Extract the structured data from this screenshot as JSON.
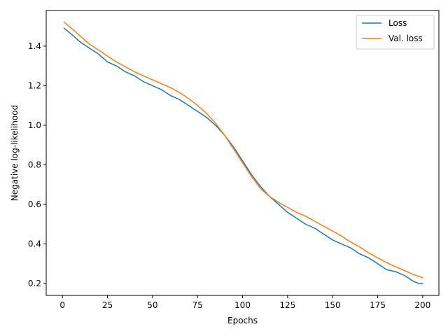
{
  "chart_data": {
    "type": "line",
    "title": "",
    "xlabel": "Epochs",
    "ylabel": "Negative log-likelihood",
    "xlim": [
      -9,
      209
    ],
    "ylim": [
      0.14,
      1.58
    ],
    "xticks": [
      0,
      25,
      50,
      75,
      100,
      125,
      150,
      175,
      200
    ],
    "yticks": [
      0.2,
      0.4,
      0.6,
      0.8,
      1.0,
      1.2,
      1.4
    ],
    "ytick_labels": [
      "0.2",
      "0.4",
      "0.6",
      "0.8",
      "1.0",
      "1.2",
      "1.4"
    ],
    "grid": false,
    "legend": "top-right",
    "series": [
      {
        "name": "Loss",
        "color": "#1f77b4",
        "x": [
          1,
          5,
          10,
          15,
          20,
          25,
          30,
          35,
          40,
          45,
          50,
          55,
          60,
          65,
          70,
          75,
          80,
          85,
          90,
          95,
          100,
          105,
          110,
          115,
          120,
          125,
          130,
          135,
          140,
          145,
          150,
          155,
          160,
          165,
          170,
          175,
          180,
          185,
          190,
          195,
          198,
          200
        ],
        "y": [
          1.49,
          1.46,
          1.42,
          1.39,
          1.36,
          1.32,
          1.3,
          1.27,
          1.25,
          1.22,
          1.2,
          1.18,
          1.15,
          1.13,
          1.1,
          1.07,
          1.04,
          1.0,
          0.95,
          0.89,
          0.82,
          0.75,
          0.69,
          0.64,
          0.6,
          0.56,
          0.53,
          0.5,
          0.48,
          0.45,
          0.42,
          0.4,
          0.38,
          0.35,
          0.33,
          0.3,
          0.27,
          0.26,
          0.24,
          0.21,
          0.2,
          0.2
        ]
      },
      {
        "name": "Val. loss",
        "color": "#ff7f0e",
        "x": [
          1,
          5,
          10,
          15,
          20,
          25,
          30,
          35,
          40,
          45,
          50,
          55,
          60,
          65,
          70,
          75,
          80,
          85,
          90,
          95,
          100,
          105,
          110,
          115,
          120,
          125,
          130,
          135,
          140,
          145,
          150,
          155,
          160,
          165,
          170,
          175,
          180,
          185,
          190,
          195,
          200
        ],
        "y": [
          1.52,
          1.49,
          1.45,
          1.41,
          1.38,
          1.35,
          1.32,
          1.295,
          1.27,
          1.25,
          1.23,
          1.21,
          1.19,
          1.165,
          1.135,
          1.1,
          1.06,
          1.01,
          0.95,
          0.88,
          0.81,
          0.74,
          0.68,
          0.64,
          0.61,
          0.585,
          0.56,
          0.54,
          0.515,
          0.49,
          0.465,
          0.44,
          0.41,
          0.385,
          0.355,
          0.33,
          0.305,
          0.285,
          0.265,
          0.245,
          0.23
        ]
      }
    ]
  }
}
